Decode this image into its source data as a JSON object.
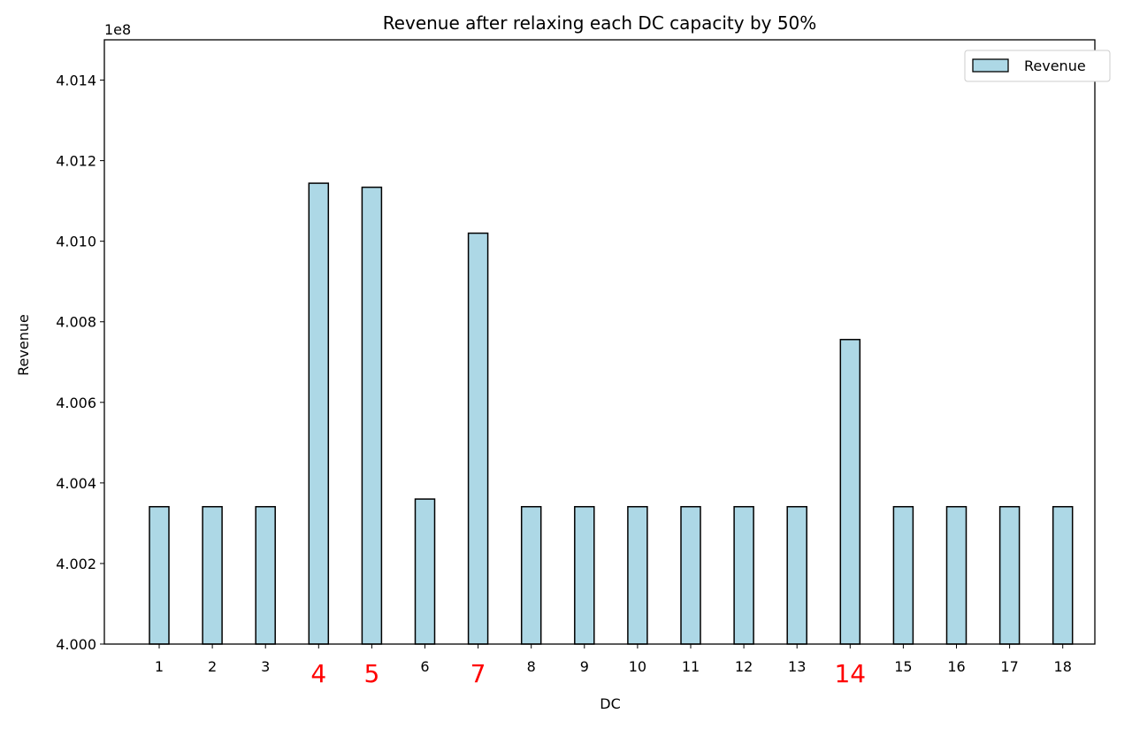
{
  "chart_data": {
    "type": "bar",
    "title": "Revenue after relaxing each DC capacity by 50%",
    "xlabel": "DC",
    "ylabel": "Revenue",
    "y_offset_label": "1e8",
    "y_scale": 100000000,
    "categories": [
      "1",
      "2",
      "3",
      "4",
      "5",
      "6",
      "7",
      "8",
      "9",
      "10",
      "11",
      "12",
      "13",
      "14",
      "15",
      "16",
      "17",
      "18"
    ],
    "highlighted_categories": [
      "4",
      "5",
      "7",
      "14"
    ],
    "highlight_color": "#ff0000",
    "series": [
      {
        "name": "Revenue",
        "color": "#add8e6",
        "edgecolor": "#000000",
        "values": [
          4.00341,
          4.00341,
          4.00341,
          4.01144,
          4.01134,
          4.0036,
          4.0102,
          4.00341,
          4.00341,
          4.00341,
          4.00341,
          4.00341,
          4.00341,
          4.00756,
          4.00341,
          4.00341,
          4.00341,
          4.00341
        ]
      }
    ],
    "ylim": [
      4.0,
      4.015
    ],
    "yticks": [
      "4.000",
      "4.002",
      "4.004",
      "4.006",
      "4.008",
      "4.010",
      "4.012",
      "4.014"
    ],
    "grid": false,
    "legend": {
      "position": "top-right",
      "entries": [
        "Revenue"
      ]
    }
  }
}
